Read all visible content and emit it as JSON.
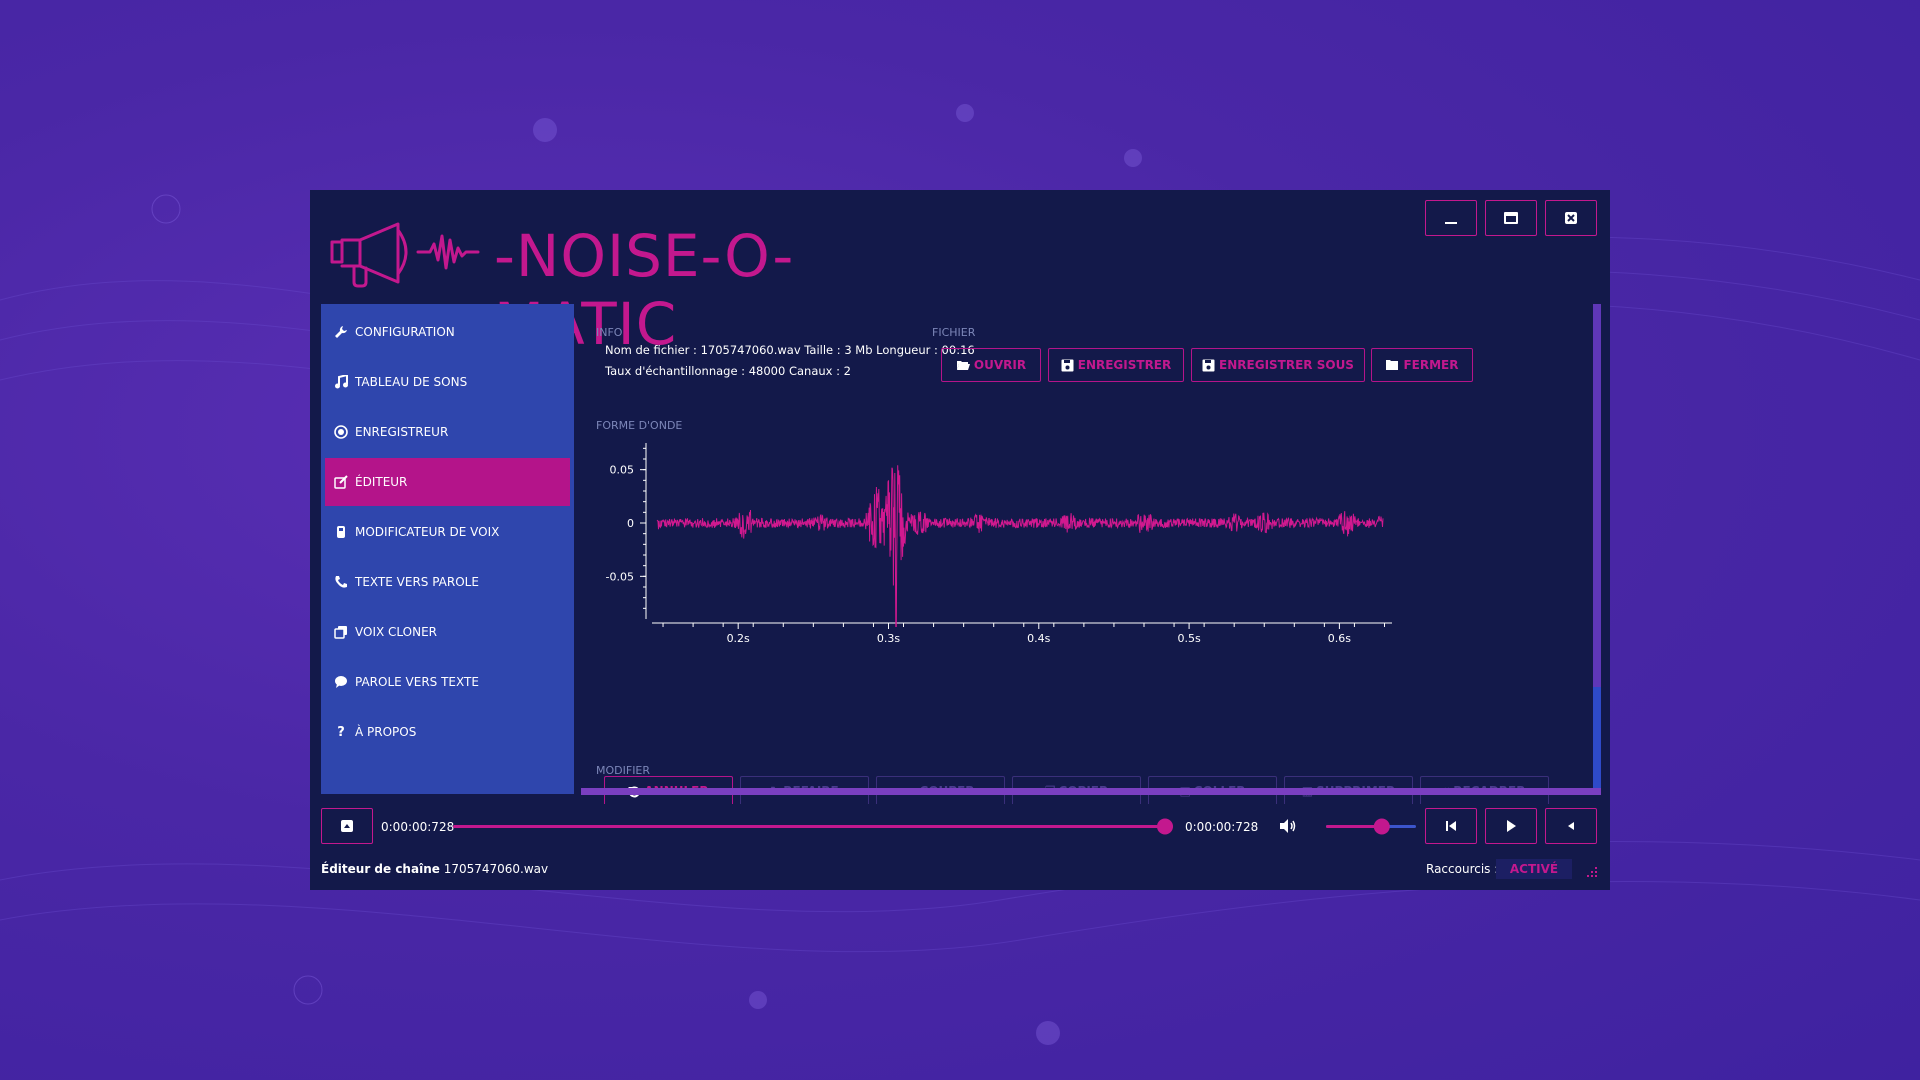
{
  "app": {
    "title": "-NOISE-O-MATIC"
  },
  "window_controls": {
    "minimize": "minimize-icon",
    "maximize": "maximize-icon",
    "close": "close-icon"
  },
  "sidebar": {
    "items": [
      {
        "label": "CONFIGURATION",
        "icon": "wrench-icon"
      },
      {
        "label": "TABLEAU DE SONS",
        "icon": "music-note-icon"
      },
      {
        "label": "ENREGISTREUR",
        "icon": "record-icon"
      },
      {
        "label": "ÉDITEUR",
        "icon": "edit-icon",
        "active": true
      },
      {
        "label": "MODIFICATEUR DE VOIX",
        "icon": "voice-changer-icon"
      },
      {
        "label": "TEXTE VERS PAROLE",
        "icon": "phone-icon"
      },
      {
        "label": "VOIX CLONER",
        "icon": "clone-icon"
      },
      {
        "label": "PAROLE VERS TEXTE",
        "icon": "speech-bubble-icon"
      },
      {
        "label": "À PROPOS",
        "icon": "question-icon"
      }
    ]
  },
  "info": {
    "heading": "INFO",
    "line1": "Nom de fichier : 1705747060.wav Taille : 3 Mb Longueur : 00:16",
    "line2": "Taux d'échantillonnage : 48000 Canaux : 2"
  },
  "fichier": {
    "heading": "FICHIER",
    "buttons": [
      {
        "label": "OUVRIR",
        "icon": "folder-open-icon"
      },
      {
        "label": "ENREGISTRER",
        "icon": "save-icon"
      },
      {
        "label": "ENREGISTRER SOUS",
        "icon": "save-as-icon"
      },
      {
        "label": "FERMER",
        "icon": "folder-icon"
      }
    ]
  },
  "waveform": {
    "heading": "FORME D'ONDE"
  },
  "chart_data": {
    "type": "line",
    "title": "",
    "xlabel": "",
    "ylabel": "",
    "ylim": [
      -0.09,
      0.075
    ],
    "xlim": [
      0.14,
      0.635
    ],
    "y_ticks": [
      0.05,
      0,
      -0.05
    ],
    "y_tick_labels": [
      "0.05",
      "0",
      "-0.05"
    ],
    "x_ticks": [
      0.2,
      0.3,
      0.4,
      0.5,
      0.6
    ],
    "x_tick_labels": [
      "0.2s",
      "0.3s",
      "0.4s",
      "0.5s",
      "0.6s"
    ],
    "color": "#d1198f",
    "bursts": [
      {
        "t": 0.146,
        "amp": 0.006
      },
      {
        "t": 0.205,
        "amp": 0.016
      },
      {
        "t": 0.255,
        "amp": 0.008
      },
      {
        "t": 0.293,
        "amp": 0.035
      },
      {
        "t": 0.304,
        "amp": 0.06
      },
      {
        "t": 0.32,
        "amp": 0.014
      },
      {
        "t": 0.36,
        "amp": 0.01
      },
      {
        "t": 0.42,
        "amp": 0.01
      },
      {
        "t": 0.47,
        "amp": 0.012
      },
      {
        "t": 0.53,
        "amp": 0.009
      },
      {
        "t": 0.55,
        "amp": 0.01
      },
      {
        "t": 0.605,
        "amp": 0.013
      },
      {
        "t": 0.63,
        "amp": 0.008
      }
    ],
    "min_point": {
      "t": 0.305,
      "value": -0.097
    }
  },
  "modifier": {
    "heading": "MODIFIER",
    "buttons": [
      {
        "label": "ANNULER",
        "icon": "undo-icon"
      },
      {
        "label": "REFAIRE",
        "icon": "redo-icon"
      },
      {
        "label": "COUPER",
        "icon": "scissors-icon"
      },
      {
        "label": "COPIER",
        "icon": "copy-icon"
      },
      {
        "label": "COLLER",
        "icon": "paste-icon"
      },
      {
        "label": "SUPPRIMER",
        "icon": "trash-icon"
      },
      {
        "label": "RECADRER",
        "icon": "crop-icon"
      }
    ]
  },
  "player": {
    "time_current": "0:00:00:728",
    "time_total": "0:00:00:728",
    "progress_fraction": 1.0,
    "volume_fraction": 0.62
  },
  "status_bar": {
    "editor_label": "Éditeur de chaîne",
    "filename": "1705747060.wav",
    "shortcuts_label": "Raccourcis :",
    "shortcuts_state": "ACTIVÉ"
  },
  "colors": {
    "accent": "#c3188e",
    "sidebar": "#2f46ad",
    "window": "#13194a",
    "background": "#4a27a6"
  }
}
